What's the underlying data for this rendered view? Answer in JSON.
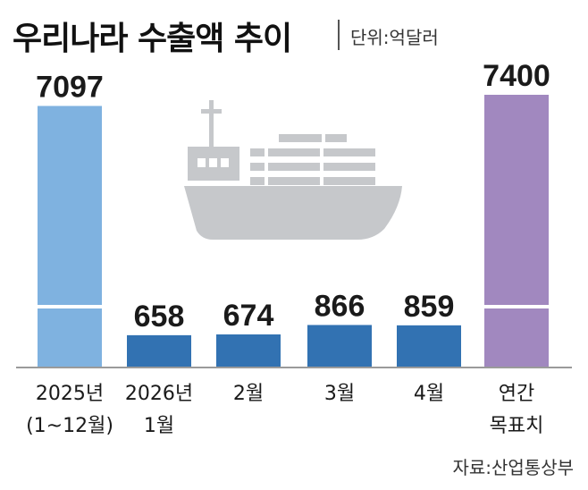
{
  "title": "우리나라 수출액 추이",
  "unit": "단위:억달러",
  "source": "자료:산업통상부",
  "colors": {
    "light_blue": "#7fb2e0",
    "dark_blue": "#3272b2",
    "purple": "#a188bf",
    "ship": "#c6c8cb",
    "axis": "#9a9a9a"
  },
  "chart_data": {
    "type": "bar",
    "categories": [
      "2025년 (1~12월)",
      "2026년 1월",
      "2월",
      "3월",
      "4월",
      "연간 목표치"
    ],
    "category_lines": [
      [
        "2025년",
        "(1~12월)"
      ],
      [
        "2026년",
        "1월"
      ],
      [
        "2월"
      ],
      [
        "3월"
      ],
      [
        "4월"
      ],
      [
        "연간",
        "목표치"
      ]
    ],
    "values": [
      7097,
      658,
      674,
      866,
      859,
      7400
    ],
    "value_labels": [
      "7097",
      "658",
      "674",
      "866",
      "859",
      "7400"
    ],
    "bar_colors": [
      "#7fb2e0",
      "#3272b2",
      "#3272b2",
      "#3272b2",
      "#3272b2",
      "#a188bf"
    ],
    "axis_break": {
      "bars": [
        0,
        5
      ]
    },
    "icon": "cargo-ship-icon"
  }
}
